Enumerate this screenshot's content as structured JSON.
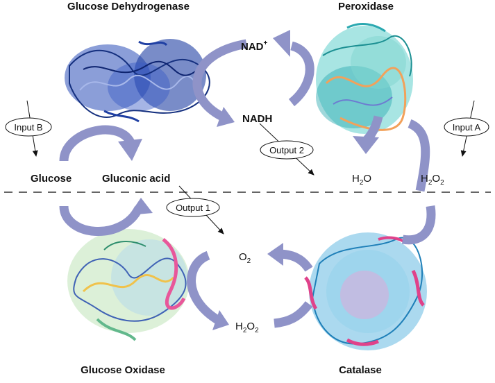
{
  "titles": {
    "glucose_dehydrogenase": "Glucose Dehydrogenase",
    "peroxidase": "Peroxidase",
    "glucose_oxidase": "Glucose Oxidase",
    "catalase": "Catalase"
  },
  "species": {
    "nad_plus_base": "NAD",
    "nad_plus_sup": "+",
    "nadh": "NADH",
    "glucose": "Glucose",
    "gluconic_acid": "Gluconic acid",
    "h2o_h": "H",
    "h2o_2": "2",
    "h2o_o": "O",
    "h2o2_top_h": "H",
    "h2o2_top_2a": "2",
    "h2o2_top_o": "O",
    "h2o2_top_2b": "2",
    "o2_o": "O",
    "o2_2": "2",
    "h2o2_bot_h": "H",
    "h2o2_bot_2a": "2",
    "h2o2_bot_o": "O",
    "h2o2_bot_2b": "2"
  },
  "io_labels": {
    "input_a": "Input A",
    "input_b": "Input B",
    "output_1": "Output 1",
    "output_2": "Output 2"
  },
  "colors": {
    "arrow": "#8f93c8",
    "dehydrogenase": "#1f3fa3",
    "peroxidase_main": "#3fc6c0",
    "peroxidase_accent": "#f2a15a",
    "oxidase_green": "#62b88c",
    "oxidase_pink": "#e8579a",
    "oxidase_yellow": "#f0c24b",
    "catalase_blue": "#2c9fd6",
    "catalase_pink": "#e0428a"
  }
}
